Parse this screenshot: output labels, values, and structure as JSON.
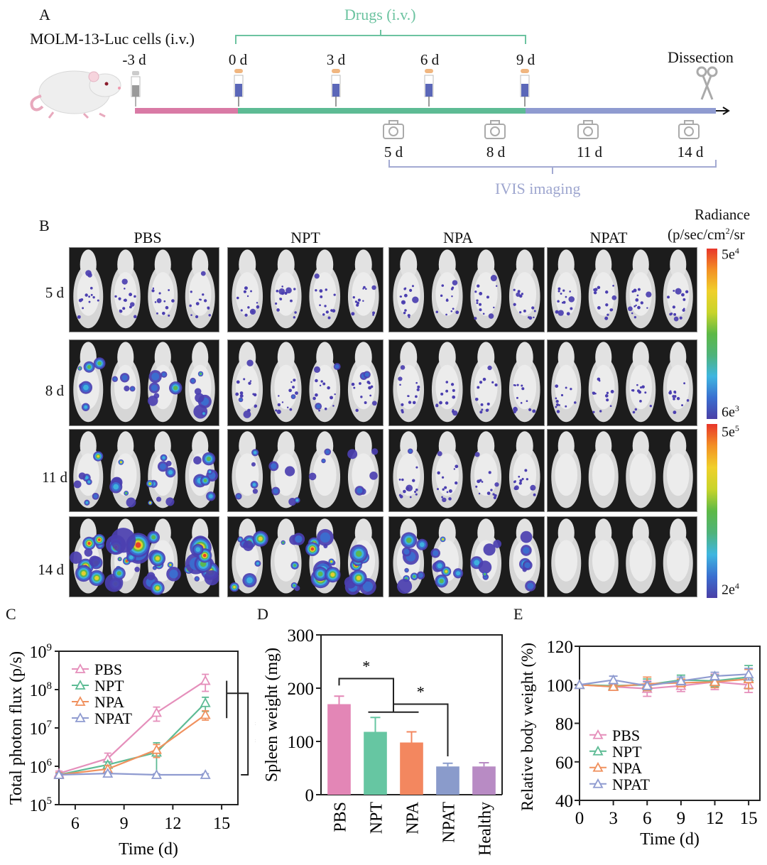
{
  "panel_a": {
    "letter": "A",
    "cells_label": "MOLM-13-Luc cells (i.v.)",
    "drugs_label": "Drugs (i.v.)",
    "dissection_label": "Dissection",
    "imaging_label": "IVIS imaging",
    "injection_days": [
      "-3 d",
      "0 d",
      "3 d",
      "6 d",
      "9 d"
    ],
    "imaging_days": [
      "5 d",
      "8 d",
      "11 d",
      "14 d"
    ],
    "colors": {
      "pre": "#d97aa5",
      "treatment": "#5dbb94",
      "post": "#8f9bd0",
      "syringe_drug": "#5b67b8",
      "syringe_cells": "#9a9a9a"
    },
    "icons": {
      "syringe": "syringe-icon",
      "camera": "camera-icon",
      "scissors": "scissors-icon",
      "mouse": "mouse-illustration"
    }
  },
  "panel_b": {
    "letter": "B",
    "groups": [
      "PBS",
      "NPT",
      "NPA",
      "NPAT"
    ],
    "days": [
      "5 d",
      "8 d",
      "11 d",
      "14 d"
    ],
    "colorbar_title_1": "Radiance",
    "colorbar_title_2": "(p/sec/cm",
    "colorbar_title_sup": "2",
    "colorbar_title_3": "/sr",
    "colorbar_top": {
      "max_base": "5e",
      "max_exp": "4",
      "min_base": "6e",
      "min_exp": "3"
    },
    "colorbar_bottom": {
      "max_base": "5e",
      "max_exp": "5",
      "min_base": "2e",
      "min_exp": "4"
    },
    "signal_intensity": [
      [
        0.12,
        0.1,
        0.12,
        0.14
      ],
      [
        0.45,
        0.18,
        0.1,
        0.03
      ],
      [
        0.75,
        0.35,
        0.18,
        0.0
      ],
      [
        1.0,
        0.7,
        0.55,
        0.0
      ]
    ]
  },
  "chart_data": [
    {
      "panel": "C",
      "type": "line",
      "title": "",
      "xlabel": "Time  (d)",
      "ylabel": "Total photon flux (p/s)",
      "yscale": "log",
      "xlim": [
        5,
        16
      ],
      "ylim": [
        100000,
        1000000000
      ],
      "xticks": [
        6,
        9,
        12,
        15
      ],
      "yticks": [
        {
          "base": "10",
          "exp": "5",
          "value": 100000
        },
        {
          "base": "10",
          "exp": "6",
          "value": 1000000
        },
        {
          "base": "10",
          "exp": "7",
          "value": 10000000
        },
        {
          "base": "10",
          "exp": "8",
          "value": 100000000
        },
        {
          "base": "10",
          "exp": "9",
          "value": 1000000000
        }
      ],
      "x": [
        5,
        8,
        11,
        14
      ],
      "series": [
        {
          "name": "PBS",
          "color": "#e58fbb",
          "values": [
            650000,
            1600000,
            25000000,
            170000000
          ],
          "err": [
            100000,
            600000,
            10000000,
            80000000
          ]
        },
        {
          "name": "NPT",
          "color": "#5dbb94",
          "values": [
            600000,
            1100000,
            2300000,
            45000000
          ],
          "err": [
            80000,
            200000,
            1800000,
            18000000
          ]
        },
        {
          "name": "NPA",
          "color": "#f0915e",
          "values": [
            600000,
            850000,
            2700000,
            22000000
          ],
          "err": [
            80000,
            200000,
            1000000,
            6000000
          ]
        },
        {
          "name": "NPAT",
          "color": "#8f9bd0",
          "values": [
            600000,
            650000,
            600000,
            600000
          ],
          "err": [
            50000,
            60000,
            40000,
            40000
          ]
        }
      ],
      "legend": "top-left",
      "annotation": "**",
      "marker": "open-triangle"
    },
    {
      "panel": "D",
      "type": "bar",
      "title": "",
      "xlabel": "",
      "ylabel": "Spleen weight (mg)",
      "ylim": [
        0,
        300
      ],
      "yticks": [
        0,
        100,
        200,
        300
      ],
      "categories": [
        "PBS",
        "NPT",
        "NPA",
        "NPAT",
        "Healthy"
      ],
      "values": [
        170,
        118,
        98,
        53,
        53
      ],
      "err": [
        15,
        27,
        20,
        6,
        7
      ],
      "colors": [
        "#e386b6",
        "#66c6a2",
        "#f3875f",
        "#8a9bcb",
        "#b88bc4"
      ],
      "significance": [
        {
          "from": "PBS",
          "to": "NPT/NPA",
          "label": "*"
        },
        {
          "from": "NPT/NPA",
          "to": "NPAT",
          "label": "*"
        }
      ]
    },
    {
      "panel": "E",
      "type": "line",
      "title": "",
      "xlabel": "Time  (d)",
      "ylabel": "Relative body weight (%)",
      "xlim": [
        0,
        16
      ],
      "ylim": [
        40,
        120
      ],
      "xticks": [
        0,
        3,
        6,
        9,
        12,
        15
      ],
      "yticks": [
        40,
        60,
        80,
        100,
        120
      ],
      "x": [
        0,
        3,
        6,
        9,
        12,
        15
      ],
      "series": [
        {
          "name": "PBS",
          "color": "#e58fbb",
          "values": [
            100,
            99,
            98,
            99.5,
            101.5,
            100
          ],
          "err": [
            0,
            1.5,
            4,
            3,
            4,
            4
          ]
        },
        {
          "name": "NPT",
          "color": "#5dbb94",
          "values": [
            100,
            99.5,
            100,
            102.5,
            102,
            104
          ],
          "err": [
            0,
            1,
            3,
            2.5,
            3,
            6
          ]
        },
        {
          "name": "NPA",
          "color": "#f0915e",
          "values": [
            100,
            99,
            100.5,
            101,
            101.5,
            103
          ],
          "err": [
            0,
            1,
            3.5,
            2,
            3,
            5
          ]
        },
        {
          "name": "NPAT",
          "color": "#8f9bd0",
          "values": [
            100,
            102.5,
            99.5,
            102,
            104.5,
            105.5
          ],
          "err": [
            0,
            2,
            2,
            2,
            2,
            3
          ]
        }
      ],
      "legend": "bottom-left",
      "marker": "open-triangle"
    }
  ],
  "labels": {
    "c": "C",
    "d": "D",
    "e": "E"
  }
}
